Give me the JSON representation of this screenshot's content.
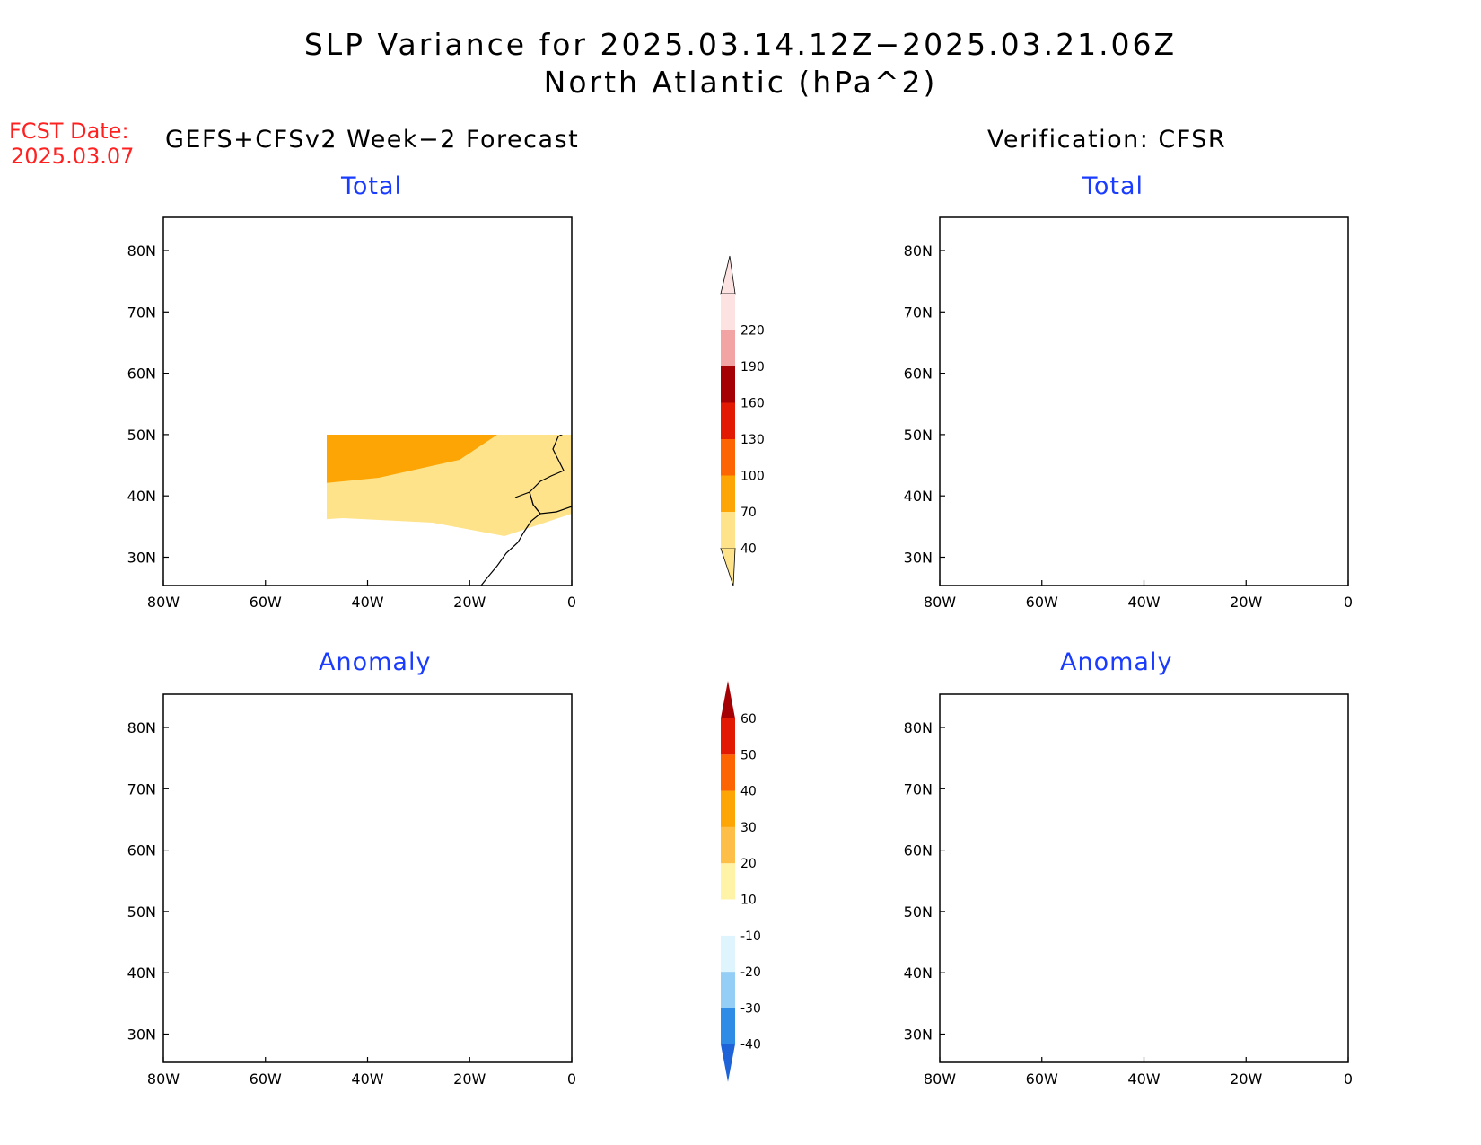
{
  "title": {
    "line1": "SLP Variance for 2025.03.14.12Z−2025.03.21.06Z",
    "line2": "North Atlantic (hPa^2)"
  },
  "forecast_date": {
    "label": "FCST Date:",
    "value": "2025.03.07"
  },
  "columns": {
    "left": "GEFS+CFSv2 Week−2 Forecast",
    "right": "Verification: CFSR"
  },
  "panels": [
    {
      "id": "fcst-total",
      "title": "Total"
    },
    {
      "id": "verif-total",
      "title": "Total"
    },
    {
      "id": "fcst-anomaly",
      "title": "Anomaly"
    },
    {
      "id": "verif-anomaly",
      "title": "Anomaly"
    }
  ],
  "axes": {
    "lat_labels": [
      "80N",
      "70N",
      "60N",
      "50N",
      "40N",
      "30N"
    ],
    "lon_labels": [
      "80W",
      "60W",
      "40W",
      "20W",
      "0"
    ]
  },
  "colorbars": {
    "total": {
      "levels": [
        "40",
        "70",
        "100",
        "130",
        "160",
        "190",
        "220"
      ],
      "colors": [
        "#fee38b",
        "#fca504",
        "#fd6402",
        "#e21a04",
        "#a50003",
        "#f2a4a4",
        "#fde2e2"
      ]
    },
    "anomaly": {
      "levels": [
        "-40",
        "-30",
        "-20",
        "-10",
        "10",
        "20",
        "30",
        "40",
        "50",
        "60"
      ],
      "colors": [
        "#1e63d8",
        "#2e8be6",
        "#94cdf5",
        "#dff5fd",
        "#ffffff",
        "#fff3a8",
        "#fdbf48",
        "#fca504",
        "#fd6402",
        "#e21a04",
        "#a50003"
      ]
    }
  }
}
